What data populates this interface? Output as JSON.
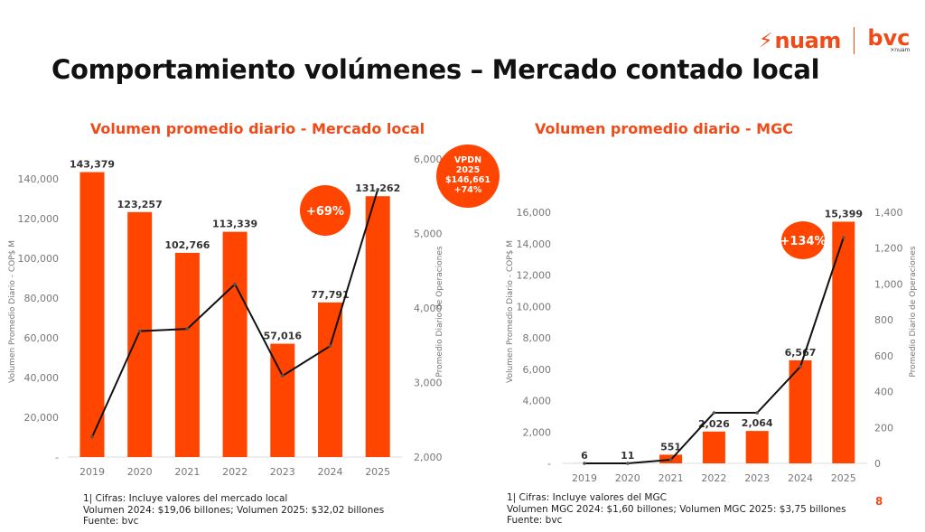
{
  "header": {
    "title": "Comportamiento volúmenes – Mercado contado local",
    "logo_text": "nuam",
    "logo_secondary": "bvc",
    "logo_secondary_sub": "×nuam",
    "accent_color": "#ff4500"
  },
  "chart_data": [
    {
      "type": "bar",
      "title": "Volumen promedio diario - Mercado local",
      "categories": [
        "2019",
        "2020",
        "2021",
        "2022",
        "2023",
        "2024",
        "2025"
      ],
      "series": [
        {
          "type": "bar",
          "axis": "left",
          "values": [
            143379,
            123257,
            102766,
            113339,
            57016,
            77791,
            131262
          ],
          "labels": [
            "143,379",
            "123,257",
            "102,766",
            "113,339",
            "57,016",
            "77,791",
            "131,262"
          ],
          "color": "#ff4500"
        },
        {
          "type": "line",
          "axis": "right",
          "values": [
            2270,
            3690,
            3720,
            4320,
            3090,
            3490,
            5590
          ],
          "color": "#111111"
        }
      ],
      "ylabel": "Volumen Promedio Diario - COP$ M",
      "ylim": [
        0,
        140000
      ],
      "yticks": [
        "-",
        "20,000",
        "40,000",
        "60,000",
        "80,000",
        "100,000",
        "120,000",
        "140,000"
      ],
      "y2label": "Promedio Diario de Operaciones",
      "y2lim": [
        2000,
        6000
      ],
      "y2ticks": [
        "2,000",
        "3,000",
        "4,000",
        "5,000",
        "6,000"
      ],
      "annotations": [
        {
          "text": "+69%"
        },
        {
          "lines": [
            "VPDN",
            "2025",
            "$146,661",
            "+74%"
          ]
        }
      ]
    },
    {
      "type": "bar",
      "title": "Volumen promedio diario - MGC",
      "categories": [
        "2019",
        "2020",
        "2021",
        "2022",
        "2023",
        "2024",
        "2025"
      ],
      "series": [
        {
          "type": "bar",
          "axis": "left",
          "values": [
            6,
            11,
            551,
            2026,
            2064,
            6567,
            15399
          ],
          "labels": [
            "6",
            "11",
            "551",
            "2,026",
            "2,064",
            "6,567",
            "15,399"
          ],
          "color": "#ff4500"
        },
        {
          "type": "line",
          "axis": "right",
          "values": [
            0,
            0,
            20,
            282,
            282,
            539,
            1259
          ],
          "color": "#111111"
        }
      ],
      "ylabel": "Volumen Promedio Diario - COP$ M",
      "ylim": [
        0,
        16000
      ],
      "yticks": [
        "-",
        "2,000",
        "4,000",
        "6,000",
        "8,000",
        "10,000",
        "12,000",
        "14,000",
        "16,000"
      ],
      "y2label": "Promedio Diario de Operaciones",
      "y2lim": [
        0,
        1400
      ],
      "y2ticks": [
        "0",
        "200",
        "400",
        "600",
        "800",
        "1,000",
        "1,200",
        "1,400"
      ],
      "annotations": [
        {
          "text": "+134%"
        }
      ]
    }
  ],
  "notes": {
    "left": [
      "1| Cifras: Incluye valores del mercado local",
      "Volumen 2024: $19,06 billones; Volumen 2025: $32,02 billones",
      "Fuente: bvc"
    ],
    "right": [
      "1| Cifras: Incluye valores del MGC",
      "Volumen MGC 2024: $1,60 billones; Volumen MGC 2025: $3,75 billones",
      "Fuente: bvc"
    ]
  },
  "page_number": "8"
}
